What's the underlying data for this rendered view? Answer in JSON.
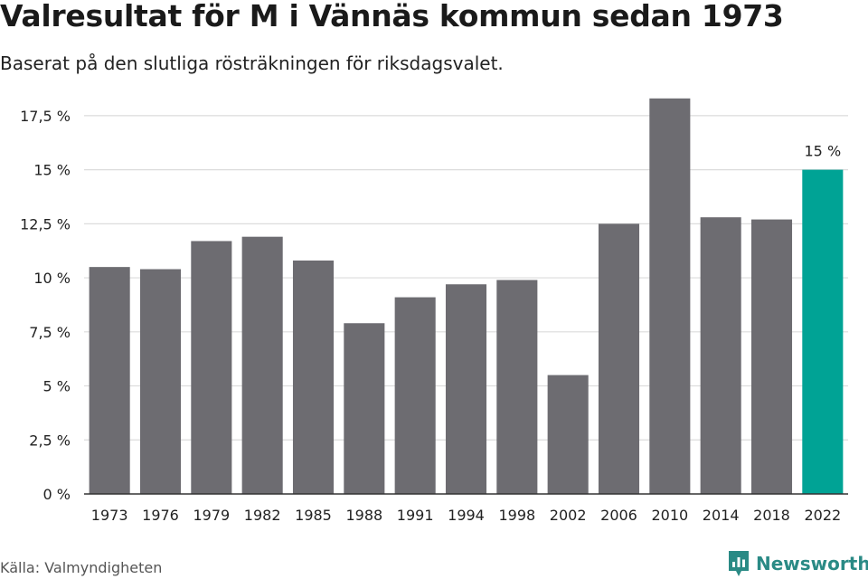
{
  "header": {
    "title": "Valresultat för M i Vännäs kommun sedan 1973",
    "subtitle": "Baserat på den slutliga rösträkningen för riksdagsvalet."
  },
  "footer": {
    "source": "Källa: Valmyndigheten",
    "brand": "Newsworthy",
    "brand_icon": "newsworthy-logo-icon",
    "brand_color": "#2a8a85"
  },
  "chart_data": {
    "type": "bar",
    "categories": [
      "1973",
      "1976",
      "1979",
      "1982",
      "1985",
      "1988",
      "1991",
      "1994",
      "1998",
      "2002",
      "2006",
      "2010",
      "2014",
      "2018",
      "2022"
    ],
    "values": [
      10.5,
      10.4,
      11.7,
      11.9,
      10.8,
      7.9,
      9.1,
      9.7,
      9.9,
      5.5,
      12.5,
      18.3,
      12.8,
      12.7,
      15.0
    ],
    "yticks": [
      0,
      2.5,
      5,
      7.5,
      10,
      12.5,
      15,
      17.5
    ],
    "ytick_labels": [
      "0 %",
      "2,5 %",
      "5 %",
      "7,5 %",
      "10 %",
      "12,5 %",
      "15 %",
      "17,5 %"
    ],
    "ylim": [
      0,
      18.5
    ],
    "grid": true,
    "bar_color": "#6d6c71",
    "highlight_color": "#00a395",
    "highlight_index": 14,
    "highlight_label": "15 %",
    "xlabel": "",
    "ylabel": ""
  }
}
